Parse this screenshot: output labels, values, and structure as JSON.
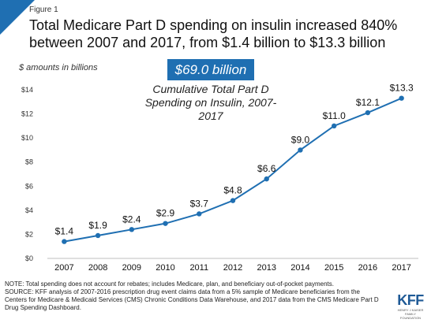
{
  "header": {
    "figure_label": "Figure 1",
    "title": "Total Medicare Part D spending on insulin increased 840% between 2007 and 2017, from $1.4 billion to $13.3 billion"
  },
  "units_label": "$ amounts in billions",
  "total_badge": "$69.0 billion",
  "callout": "Cumulative Total Part D Spending on Insulin, 2007-2017",
  "colors": {
    "accent": "#1f6fb2",
    "line": "#1f6fb2",
    "axis": "#bfbfbf"
  },
  "chart_data": {
    "type": "line",
    "title": "",
    "xlabel": "",
    "ylabel": "",
    "x": [
      "2007",
      "2008",
      "2009",
      "2010",
      "2011",
      "2012",
      "2013",
      "2014",
      "2015",
      "2016",
      "2017"
    ],
    "series": [
      {
        "values": [
          1.4,
          1.9,
          2.4,
          2.9,
          3.7,
          4.8,
          6.6,
          9.0,
          11.0,
          12.1,
          13.3
        ],
        "labels": [
          "$1.4",
          "$1.9",
          "$2.4",
          "$2.9",
          "$3.7",
          "$4.8",
          "$6.6",
          "$9.0",
          "$11.0",
          "$12.1",
          "$13.3"
        ]
      }
    ],
    "ylim": [
      0,
      14
    ],
    "yticks": [
      0,
      2,
      4,
      6,
      8,
      10,
      12,
      14
    ],
    "ytick_labels": [
      "$0",
      "$2",
      "$4",
      "$6",
      "$8",
      "$10",
      "$12",
      "$14"
    ],
    "grid": false,
    "markers": true
  },
  "note": {
    "line1": "NOTE: Total spending does not account for rebates; includes Medicare, plan, and beneficiary out-of-pocket payments.",
    "line2": "SOURCE: KFF analysis of 2007-2016 prescription drug event claims data from a 5% sample of Medicare beneficiaries from the Centers for Medicare & Medicaid Services (CMS) Chronic Conditions Data Warehouse, and 2017 data from the CMS Medicare Part D Drug Spending Dashboard."
  },
  "logo": {
    "wordmark": "KFF",
    "subtitle": "HENRY J KAISER FAMILY FOUNDATION"
  }
}
